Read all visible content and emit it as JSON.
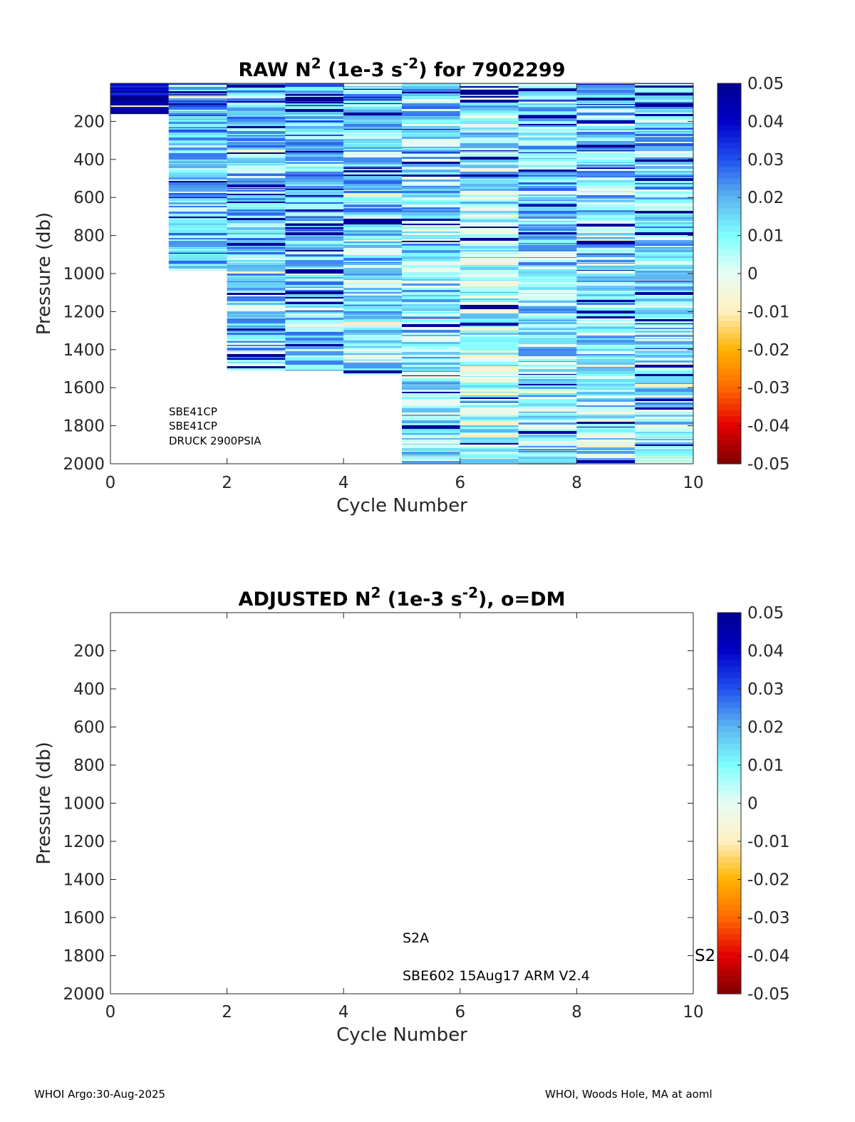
{
  "footer": {
    "left": "WHOI Argo:30-Aug-2025",
    "right": "WHOI, Woods Hole, MA at aoml"
  },
  "colors": {
    "colormap_stops": [
      "#7f0000",
      "#e40000",
      "#ff6a00",
      "#ffb400",
      "#fff0c0",
      "#e8fcf4",
      "#7fffff",
      "#5cb4f0",
      "#2050f0",
      "#0000c8",
      "#00008f"
    ],
    "axis": "#262626",
    "text": "#000000"
  },
  "chart_data": [
    {
      "type": "heatmap",
      "title": {
        "prefix": "RAW N",
        "sup1": "2",
        "mid": " (1e-3 s",
        "sup2": "-2",
        "suffix": ") for 7902299"
      },
      "xlabel": "Cycle Number",
      "ylabel": "Pressure (db)",
      "xlim": [
        0,
        10
      ],
      "ylim": [
        2000,
        0
      ],
      "y_reversed": true,
      "xticks": [
        "0",
        "2",
        "4",
        "6",
        "8",
        "10"
      ],
      "xtick_values": [
        0,
        2,
        4,
        6,
        8,
        10
      ],
      "yticks": [
        "200",
        "400",
        "600",
        "800",
        "1000",
        "1200",
        "1400",
        "1600",
        "1800",
        "2000"
      ],
      "ytick_values": [
        200,
        400,
        600,
        800,
        1000,
        1200,
        1400,
        1600,
        1800,
        2000
      ],
      "colorbar": {
        "range": [
          -0.05,
          0.05
        ],
        "ticks": [
          "0.05",
          "0.04",
          "0.03",
          "0.02",
          "0.01",
          "0",
          "-0.01",
          "-0.02",
          "-0.03",
          "-0.04",
          "-0.05"
        ],
        "tick_values": [
          0.05,
          0.04,
          0.03,
          0.02,
          0.01,
          0,
          -0.01,
          -0.02,
          -0.03,
          -0.04,
          -0.05
        ]
      },
      "annotations": [
        "SBE41CP",
        "SBE41CP",
        "DRUCK 2900PSIA"
      ],
      "columns": [
        {
          "cycle": 0,
          "p_top": 0,
          "p_bottom": 160,
          "mean": 0.045
        },
        {
          "cycle": 1,
          "p_top": 0,
          "p_bottom": 985,
          "mean": 0.018
        },
        {
          "cycle": 2,
          "p_top": 0,
          "p_bottom": 1510,
          "mean": 0.017
        },
        {
          "cycle": 3,
          "p_top": 0,
          "p_bottom": 1510,
          "mean": 0.017
        },
        {
          "cycle": 4,
          "p_top": 0,
          "p_bottom": 1530,
          "mean": 0.015
        },
        {
          "cycle": 5,
          "p_top": 0,
          "p_bottom": 2000,
          "mean": 0.014
        },
        {
          "cycle": 6,
          "p_top": 0,
          "p_bottom": 2000,
          "mean": 0.01
        },
        {
          "cycle": 7,
          "p_top": 0,
          "p_bottom": 2005,
          "mean": 0.016
        },
        {
          "cycle": 8,
          "p_top": 0,
          "p_bottom": 2000,
          "mean": 0.014
        },
        {
          "cycle": 9,
          "p_top": 0,
          "p_bottom": 2000,
          "mean": 0.016
        }
      ]
    },
    {
      "type": "heatmap",
      "title": {
        "prefix": "ADJUSTED N",
        "sup1": "2",
        "mid": " (1e-3 s",
        "sup2": "-2",
        "suffix": "), o=DM"
      },
      "xlabel": "Cycle Number",
      "ylabel": "Pressure (db)",
      "xlim": [
        0,
        10
      ],
      "ylim": [
        2000,
        0
      ],
      "y_reversed": true,
      "xticks": [
        "0",
        "2",
        "4",
        "6",
        "8",
        "10"
      ],
      "xtick_values": [
        0,
        2,
        4,
        6,
        8,
        10
      ],
      "yticks": [
        "200",
        "400",
        "600",
        "800",
        "1000",
        "1200",
        "1400",
        "1600",
        "1800",
        "2000"
      ],
      "ytick_values": [
        200,
        400,
        600,
        800,
        1000,
        1200,
        1400,
        1600,
        1800,
        2000
      ],
      "colorbar": {
        "range": [
          -0.05,
          0.05
        ],
        "ticks": [
          "0.05",
          "0.04",
          "0.03",
          "0.02",
          "0.01",
          "0",
          "-0.01",
          "-0.02",
          "-0.03",
          "-0.04",
          "-0.05"
        ],
        "tick_values": [
          0.05,
          0.04,
          0.03,
          0.02,
          0.01,
          0,
          -0.01,
          -0.02,
          -0.03,
          -0.04,
          -0.05
        ]
      },
      "annotations": [
        "S2A",
        "SBE602 15Aug17 ARM V2.4",
        "S2"
      ],
      "columns": []
    }
  ]
}
